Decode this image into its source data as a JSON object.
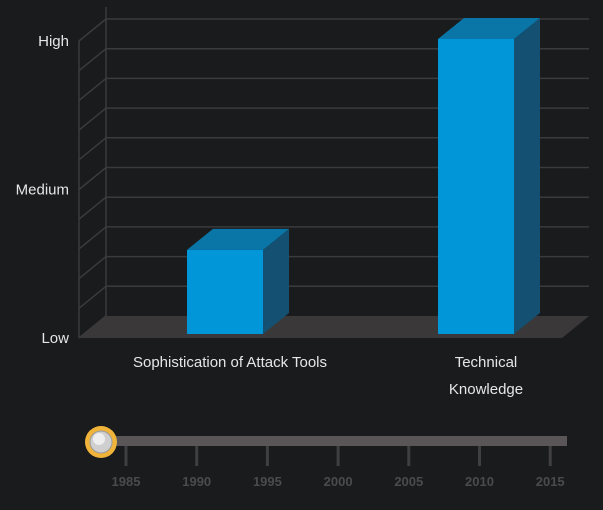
{
  "chart_data": {
    "type": "bar",
    "categories": [
      "Sophistication of Attack Tools",
      "Technical Knowledge"
    ],
    "category_lines": [
      [
        "Sophistication of Attack Tools"
      ],
      [
        "Technical",
        "Knowledge"
      ]
    ],
    "values": [
      0.28,
      0.99
    ],
    "ylim": [
      0,
      1
    ],
    "y_tick_labels": [
      {
        "value": 0,
        "label": "Low"
      },
      {
        "value": 0.5,
        "label": "Medium"
      },
      {
        "value": 1,
        "label": "High"
      }
    ],
    "bar_color": "#0096d8",
    "bar_top_color": "#0a76a8",
    "bar_side_color": "#135071",
    "grid": true
  },
  "timeline": {
    "ticks": [
      "1985",
      "1990",
      "1995",
      "2000",
      "2005",
      "2010",
      "2015"
    ],
    "current_position": 0
  }
}
